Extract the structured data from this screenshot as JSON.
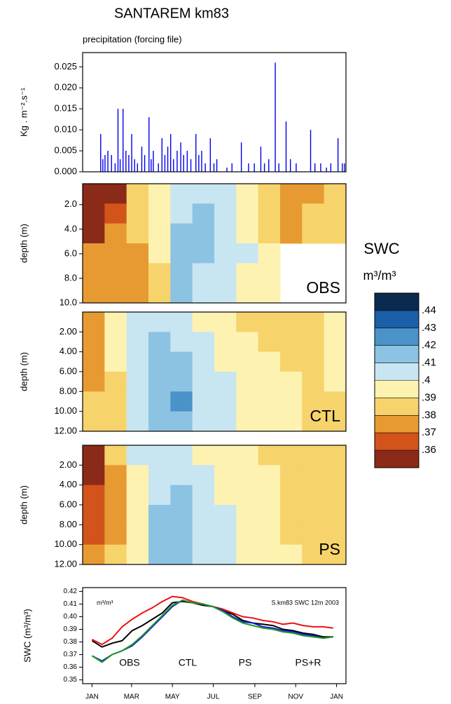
{
  "title": "SANTAREM km83",
  "colorbar": {
    "title": "SWC",
    "unit": "m³/m³",
    "colors": [
      "#8b2a18",
      "#d2541a",
      "#e89a32",
      "#f7d36b",
      "#fdf2b0",
      "#c8e5f2",
      "#8cc3e3",
      "#4a93c9",
      "#1a5fa8",
      "#0a2a50"
    ],
    "ticks": [
      {
        "value": 0.36,
        "label": ".36"
      },
      {
        "value": 0.37,
        "label": ".37"
      },
      {
        "value": 0.38,
        "label": ".38"
      },
      {
        "value": 0.39,
        "label": ".39"
      },
      {
        "value": 0.4,
        "label": ".4"
      },
      {
        "value": 0.41,
        "label": ".41"
      },
      {
        "value": 0.42,
        "label": ".42"
      },
      {
        "value": 0.43,
        "label": ".43"
      },
      {
        "value": 0.44,
        "label": ".44"
      }
    ]
  },
  "chart_data": [
    {
      "type": "bar",
      "title": "precipitation (forcing file)",
      "ylabel": "Kg . m⁻².s⁻¹",
      "color": "#0000ee",
      "xlim": [
        0,
        365
      ],
      "ylim": [
        0,
        0.0284
      ],
      "yticks": [
        {
          "value": 0,
          "label": "0.000"
        },
        {
          "value": 0.005,
          "label": "0.005"
        },
        {
          "value": 0.01,
          "label": "0.010"
        },
        {
          "value": 0.015,
          "label": "0.015"
        },
        {
          "value": 0.02,
          "label": "0.020"
        },
        {
          "value": 0.025,
          "label": "0.025"
        }
      ],
      "x": [
        25,
        28,
        31,
        35,
        40,
        45,
        49,
        52,
        56,
        60,
        64,
        68,
        72,
        76,
        82,
        86,
        92,
        95,
        98,
        105,
        110,
        114,
        118,
        122,
        126,
        131,
        136,
        140,
        145,
        150,
        157,
        161,
        165,
        170,
        177,
        182,
        186,
        200,
        207,
        220,
        230,
        238,
        247,
        252,
        258,
        267,
        272,
        282,
        288,
        296,
        316,
        322,
        330,
        338,
        344,
        354,
        360,
        363
      ],
      "values": [
        0.009,
        0.003,
        0.004,
        0.005,
        0.004,
        0.002,
        0.015,
        0.003,
        0.015,
        0.005,
        0.004,
        0.009,
        0.003,
        0.002,
        0.006,
        0.004,
        0.013,
        0.003,
        0.005,
        0.002,
        0.008,
        0.004,
        0.006,
        0.009,
        0.003,
        0.005,
        0.007,
        0.004,
        0.005,
        0.003,
        0.009,
        0.004,
        0.005,
        0.002,
        0.008,
        0.002,
        0.003,
        0.001,
        0.002,
        0.007,
        0.002,
        0.002,
        0.006,
        0.002,
        0.003,
        0.026,
        0.002,
        0.012,
        0.003,
        0.002,
        0.01,
        0.002,
        0.002,
        0.001,
        0.002,
        0.008,
        0.002,
        0.002
      ]
    },
    {
      "type": "contour",
      "label": "OBS",
      "ylabel": "depth (m)",
      "ylim": [
        0.3,
        10
      ],
      "yticks": [
        {
          "value": 2,
          "label": "2.0"
        },
        {
          "value": 4,
          "label": "4.0"
        },
        {
          "value": 6,
          "label": "6.0"
        },
        {
          "value": 8,
          "label": "8.0"
        },
        {
          "value": 10,
          "label": "10.0"
        }
      ],
      "z": [
        [
          0.355,
          0.355,
          0.385,
          0.395,
          0.405,
          0.405,
          0.405,
          0.395,
          0.385,
          0.375,
          0.375,
          0.385
        ],
        [
          0.355,
          0.365,
          0.385,
          0.395,
          0.405,
          0.415,
          0.405,
          0.395,
          0.385,
          0.375,
          0.385,
          0.385
        ],
        [
          0.355,
          0.375,
          0.385,
          0.395,
          0.415,
          0.415,
          0.405,
          0.395,
          0.385,
          0.375,
          0.385,
          0.385
        ],
        [
          0.375,
          0.375,
          0.375,
          0.395,
          0.415,
          0.415,
          0.405,
          0.405,
          0.395,
          null,
          null,
          null
        ],
        [
          0.375,
          0.375,
          0.375,
          0.385,
          0.415,
          0.405,
          0.405,
          0.395,
          0.395,
          null,
          null,
          null
        ],
        [
          0.375,
          0.375,
          0.375,
          0.385,
          0.415,
          0.405,
          0.405,
          0.395,
          0.395,
          null,
          null,
          null
        ]
      ]
    },
    {
      "type": "contour",
      "label": "CTL",
      "ylabel": "depth (m)",
      "ylim": [
        0,
        12
      ],
      "yticks": [
        {
          "value": 2,
          "label": "2.00"
        },
        {
          "value": 4,
          "label": "4.00"
        },
        {
          "value": 6,
          "label": "6.00"
        },
        {
          "value": 8,
          "label": "8.00"
        },
        {
          "value": 10,
          "label": "10.00"
        },
        {
          "value": 12,
          "label": "12.00"
        }
      ],
      "z": [
        [
          0.375,
          0.395,
          0.405,
          0.405,
          0.405,
          0.395,
          0.395,
          0.385,
          0.385,
          0.385,
          0.385,
          0.395
        ],
        [
          0.375,
          0.395,
          0.405,
          0.415,
          0.405,
          0.405,
          0.395,
          0.395,
          0.385,
          0.385,
          0.385,
          0.395
        ],
        [
          0.375,
          0.395,
          0.405,
          0.415,
          0.415,
          0.405,
          0.395,
          0.395,
          0.395,
          0.385,
          0.385,
          0.395
        ],
        [
          0.375,
          0.385,
          0.405,
          0.415,
          0.415,
          0.405,
          0.405,
          0.395,
          0.395,
          0.395,
          0.385,
          0.395
        ],
        [
          0.385,
          0.385,
          0.405,
          0.415,
          0.425,
          0.405,
          0.405,
          0.395,
          0.395,
          0.395,
          0.385,
          0.385
        ],
        [
          0.385,
          0.385,
          0.405,
          0.415,
          0.415,
          0.405,
          0.405,
          0.395,
          0.395,
          0.395,
          0.385,
          0.385
        ]
      ]
    },
    {
      "type": "contour",
      "label": "PS",
      "ylabel": "depth (m)",
      "ylim": [
        0,
        12
      ],
      "yticks": [
        {
          "value": 2,
          "label": "2.00"
        },
        {
          "value": 4,
          "label": "4.00"
        },
        {
          "value": 6,
          "label": "6.00"
        },
        {
          "value": 8,
          "label": "8.00"
        },
        {
          "value": 10,
          "label": "10.00"
        },
        {
          "value": 12,
          "label": "12.00"
        }
      ],
      "z": [
        [
          0.355,
          0.385,
          0.405,
          0.405,
          0.405,
          0.395,
          0.395,
          0.395,
          0.385,
          0.385,
          0.385,
          0.385
        ],
        [
          0.355,
          0.375,
          0.395,
          0.405,
          0.405,
          0.405,
          0.395,
          0.395,
          0.395,
          0.385,
          0.385,
          0.385
        ],
        [
          0.365,
          0.375,
          0.395,
          0.405,
          0.415,
          0.405,
          0.395,
          0.395,
          0.395,
          0.385,
          0.385,
          0.385
        ],
        [
          0.365,
          0.375,
          0.395,
          0.415,
          0.415,
          0.405,
          0.405,
          0.395,
          0.395,
          0.385,
          0.385,
          0.385
        ],
        [
          0.365,
          0.375,
          0.395,
          0.415,
          0.415,
          0.405,
          0.405,
          0.395,
          0.395,
          0.385,
          0.385,
          0.385
        ],
        [
          0.375,
          0.385,
          0.395,
          0.415,
          0.415,
          0.405,
          0.405,
          0.395,
          0.395,
          0.395,
          0.385,
          0.385
        ]
      ]
    },
    {
      "type": "line",
      "ylabel": "SWC (m³/m³)",
      "annotations": [
        "m³/m³",
        "S.km83 SWC 12m 2003"
      ],
      "xlim": [
        -14,
        379
      ],
      "ylim": [
        0.347,
        0.423
      ],
      "xticks": [
        {
          "value": 0,
          "label": "JAN"
        },
        {
          "value": 59,
          "label": "MAR"
        },
        {
          "value": 120,
          "label": "MAY"
        },
        {
          "value": 181,
          "label": "JUL"
        },
        {
          "value": 243,
          "label": "SEP"
        },
        {
          "value": 304,
          "label": "NOV"
        },
        {
          "value": 365,
          "label": "JAN"
        }
      ],
      "yticks": [
        {
          "value": 0.35,
          "label": "0.35"
        },
        {
          "value": 0.36,
          "label": "0.36"
        },
        {
          "value": 0.37,
          "label": "0.37"
        },
        {
          "value": 0.38,
          "label": "0.38"
        },
        {
          "value": 0.39,
          "label": "0.39"
        },
        {
          "value": 0.4,
          "label": "0.40"
        },
        {
          "value": 0.41,
          "label": "0.41"
        },
        {
          "value": 0.42,
          "label": "0.42"
        }
      ],
      "x": [
        0,
        15,
        30,
        45,
        60,
        75,
        90,
        105,
        120,
        135,
        150,
        165,
        180,
        195,
        210,
        225,
        240,
        255,
        270,
        285,
        300,
        315,
        330,
        345,
        360
      ],
      "series": [
        {
          "name": "OBS",
          "color": "#000000",
          "values": [
            0.381,
            0.376,
            0.379,
            0.381,
            0.389,
            0.393,
            0.398,
            0.403,
            0.411,
            0.412,
            0.411,
            0.409,
            0.408,
            0.405,
            0.402,
            0.397,
            0.395,
            0.394,
            0.393,
            0.39,
            0.389,
            0.387,
            0.386,
            0.384,
            0.384
          ]
        },
        {
          "name": "CTL",
          "color": "#ee1111",
          "values": [
            0.382,
            0.378,
            0.383,
            0.392,
            0.398,
            0.403,
            0.407,
            0.412,
            0.416,
            0.415,
            0.412,
            0.41,
            0.408,
            0.406,
            0.403,
            0.4,
            0.399,
            0.397,
            0.396,
            0.394,
            0.395,
            0.393,
            0.392,
            0.392,
            0.391
          ]
        },
        {
          "name": "PS",
          "color": "#1a1add",
          "values": [
            0.369,
            0.365,
            0.37,
            0.373,
            0.377,
            0.384,
            0.392,
            0.4,
            0.408,
            0.413,
            0.411,
            0.41,
            0.408,
            0.405,
            0.4,
            0.396,
            0.395,
            0.392,
            0.391,
            0.389,
            0.388,
            0.386,
            0.385,
            0.383,
            0.384
          ]
        },
        {
          "name": "PS+R",
          "color": "#229922",
          "values": [
            0.369,
            0.364,
            0.37,
            0.373,
            0.378,
            0.385,
            0.393,
            0.401,
            0.409,
            0.413,
            0.411,
            0.41,
            0.408,
            0.404,
            0.399,
            0.395,
            0.393,
            0.391,
            0.39,
            0.388,
            0.387,
            0.385,
            0.384,
            0.383,
            0.384
          ]
        }
      ]
    }
  ]
}
